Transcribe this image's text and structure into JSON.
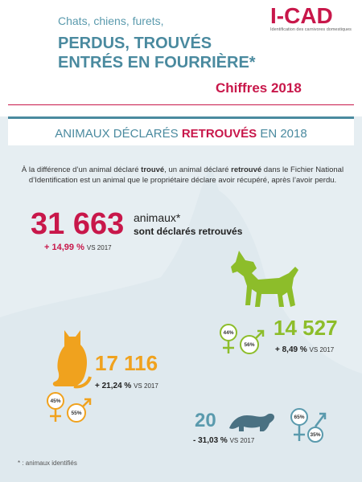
{
  "header": {
    "kicker": "Chats, chiens, furets,",
    "title_line1": "PERDUS, TROUVÉS",
    "title_line2": "ENTRÉS EN FOURRIÈRE*",
    "subtitle": "Chiffres 2018",
    "logo_text": "I-CAD",
    "logo_tagline": "Identification des carnivores domestiques"
  },
  "banner": {
    "prefix": "ANIMAUX DÉCLARÉS ",
    "accent": "RETROUVÉS",
    "suffix": " EN 2018"
  },
  "intro": {
    "p1": "À la différence d’un animal déclaré ",
    "b1": "trouvé",
    "p2": ", un animal déclaré ",
    "b2": "retrouvé",
    "p3": " dans le Fichier National d’Identification est un animal que le propriétaire déclare avoir récupéré, après l’avoir perdu."
  },
  "total": {
    "value": "31 663",
    "label_line1": "animaux*",
    "label_line2": "sont déclarés retrouvés",
    "change": "+ 14,99 %",
    "vs": "VS 2017"
  },
  "dogs": {
    "value": "14 527",
    "change": "+ 8,49 %",
    "vs": "VS 2017",
    "female_pct": "44%",
    "male_pct": "56%"
  },
  "cats": {
    "value": "17 116",
    "change": "+ 21,24 %",
    "vs": "VS 2017",
    "female_pct": "45%",
    "male_pct": "55%"
  },
  "ferrets": {
    "value": "20",
    "change": "- 31,03 %",
    "vs": "VS 2017",
    "female_pct": "65%",
    "male_pct": "35%"
  },
  "footnote": "* : animaux identifiés",
  "colors": {
    "brand": "#c8174a",
    "teal": "#4a8a9f",
    "dog": "#8dbd2a",
    "cat": "#f0a21e",
    "ferret": "#5a9aad"
  }
}
